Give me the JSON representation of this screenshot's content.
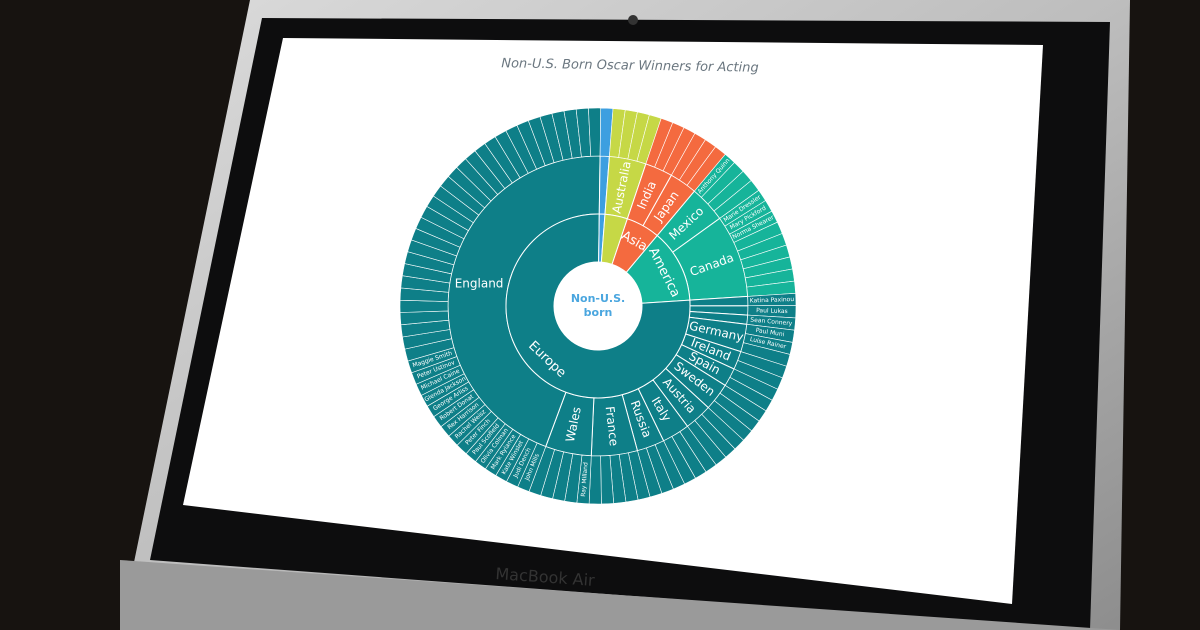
{
  "device_label": "MacBook Air",
  "chart_data": {
    "type": "sunburst",
    "title": "Non-U.S. Born Oscar Winners for Acting",
    "center_label": "Non-U.S. born",
    "nodes": [
      {
        "name": "America",
        "color": "#16b49a",
        "children": [
          {
            "name": "Mexico",
            "value": 4,
            "winners": [
              "Anthony Quinn"
            ]
          },
          {
            "name": "Canada",
            "value": 9,
            "winners": [
              "Marie Dressler",
              "Mary Pickford",
              "Norma Shearer"
            ]
          }
        ]
      },
      {
        "name": "Europe",
        "color": "#0e7f88",
        "children": [
          {
            "name": null,
            "value": 1,
            "winners": [
              "Katina Paxinou"
            ]
          },
          {
            "name": null,
            "value": 1,
            "winners": [
              "Paul Lukas"
            ]
          },
          {
            "name": null,
            "value": 1,
            "winners": [
              "Sean Connery"
            ]
          },
          {
            "name": "Germany",
            "value": 3,
            "winners": [
              "Paul Muni",
              "Luise Rainer"
            ]
          },
          {
            "name": "Ireland",
            "value": 2,
            "winners": []
          },
          {
            "name": "Spain",
            "value": 2,
            "winners": []
          },
          {
            "name": "Sweden",
            "value": 3,
            "winners": []
          },
          {
            "name": "Austria",
            "value": 3,
            "winners": []
          },
          {
            "name": "Italy",
            "value": 3,
            "winners": []
          },
          {
            "name": "Russia",
            "value": 3,
            "winners": []
          },
          {
            "name": "France",
            "value": 5,
            "winners": []
          },
          {
            "name": "Wales",
            "value": 5,
            "winners": [
              "Ray Milland"
            ]
          },
          {
            "name": "England",
            "value": 45,
            "winners": [
              "John Mills",
              "Judi Dench",
              "Kate Winslet",
              "Mark Rylance",
              "Olivia Colman",
              "Paul Scofield",
              "Peter Finch",
              "Rachel Weisz",
              "Rex Harrison",
              "Robert Donat",
              "George Arliss",
              "Glenda Jackson",
              "Michael Caine",
              "Peter Ustinov",
              "Maggie Smith"
            ]
          }
        ]
      },
      {
        "name": null,
        "color": "#3d9fe0",
        "children": [
          {
            "name": null,
            "value": 1,
            "winners": []
          }
        ]
      },
      {
        "name": null,
        "color": "#c6d846",
        "children": [
          {
            "name": "Australia",
            "value": 4,
            "winners": []
          }
        ]
      },
      {
        "name": "Asia",
        "color": "#f46a3f",
        "children": [
          {
            "name": "India",
            "value": 3,
            "winners": []
          },
          {
            "name": "Japan",
            "value": 3,
            "winners": []
          }
        ]
      }
    ]
  }
}
